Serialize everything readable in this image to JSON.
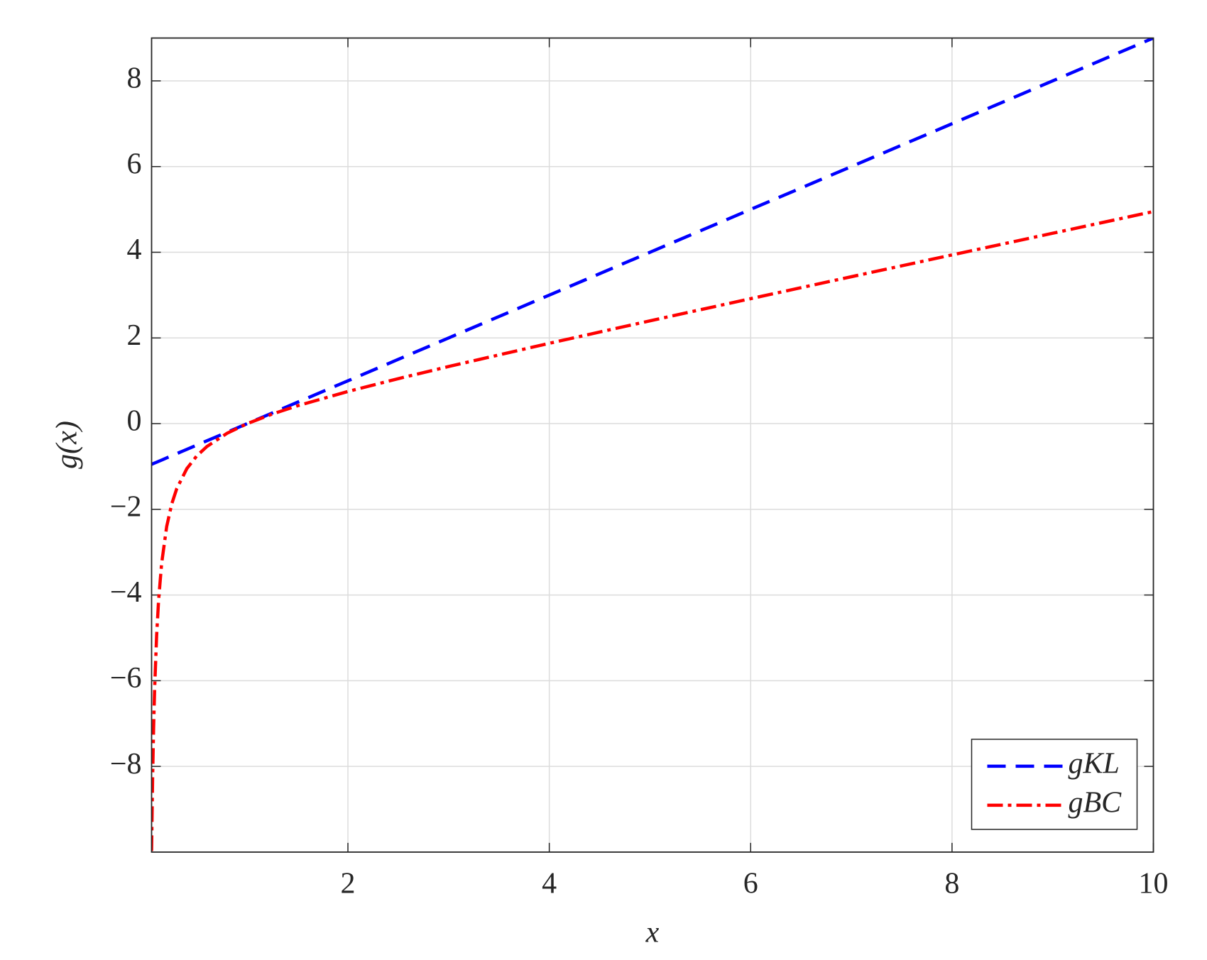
{
  "chart_data": {
    "type": "line",
    "xlabel": "x",
    "ylabel": "g(x)",
    "x": [
      0.05,
      0.06,
      0.07,
      0.08,
      0.1,
      0.12,
      0.15,
      0.2,
      0.25,
      0.3,
      0.4,
      0.5,
      0.6,
      0.8,
      1,
      1.25,
      1.5,
      2,
      2.5,
      3,
      4,
      5,
      6,
      7,
      8,
      9,
      10
    ],
    "series": [
      {
        "name": "gKL",
        "color": "#0000ff",
        "style": "dashed",
        "values": [
          -0.95,
          -0.94,
          -0.93,
          -0.92,
          -0.9,
          -0.88,
          -0.85,
          -0.8,
          -0.75,
          -0.7,
          -0.6,
          -0.5,
          -0.4,
          -0.2,
          0,
          0.25,
          0.5,
          1,
          1.5,
          2,
          3,
          4,
          5,
          6,
          7,
          8,
          9
        ]
      },
      {
        "name": "gBC",
        "color": "#ff0000",
        "style": "dashdot",
        "values": [
          -9.975,
          -8.303,
          -7.108,
          -6.21,
          -4.95,
          -4.107,
          -3.258,
          -2.4,
          -1.875,
          -1.517,
          -1.05,
          -0.75,
          -0.533,
          -0.225,
          0,
          0.225,
          0.417,
          0.75,
          1.05,
          1.333,
          1.875,
          2.4,
          2.917,
          3.429,
          3.938,
          4.444,
          4.95
        ]
      }
    ],
    "xlim": [
      0.05,
      10
    ],
    "ylim": [
      -10,
      9
    ],
    "xticks": [
      2,
      4,
      6,
      8,
      10
    ],
    "yticks": [
      {
        "value": -8,
        "label": "−8"
      },
      {
        "value": -6,
        "label": "−6"
      },
      {
        "value": -4,
        "label": "−4"
      },
      {
        "value": -2,
        "label": "−2"
      },
      0,
      2,
      4,
      6,
      8
    ],
    "grid": true,
    "legend": "lower right"
  }
}
